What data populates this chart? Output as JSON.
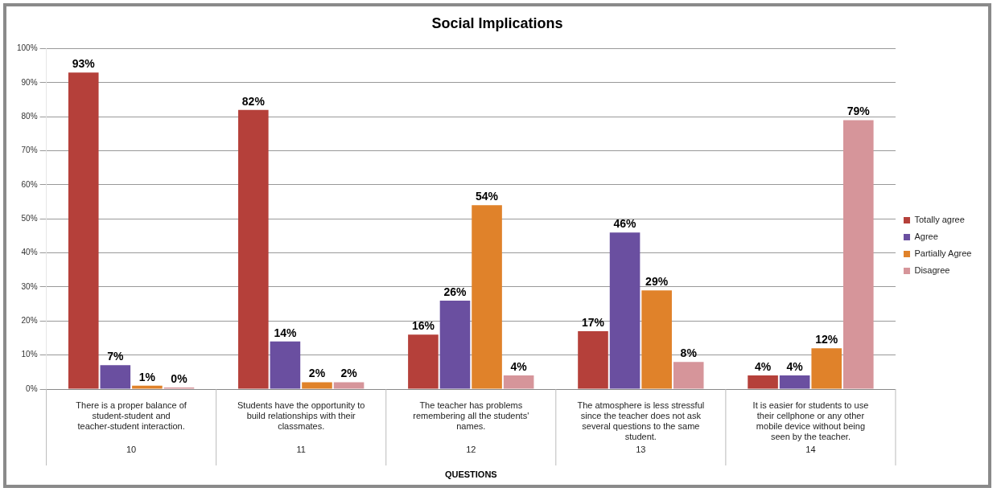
{
  "chart_data": {
    "type": "bar",
    "title": "Social Implications",
    "xlabel": "QUESTIONS",
    "categories": [
      "There is a proper balance of student-student and teacher-student interaction.",
      "Students have the opportunity to build relationships with their classmates.",
      "The teacher has problems remembering all the students' names.",
      "The atmosphere is less stressful since the teacher does not ask several questions to the same student.",
      "It is easier for students to use their cellphone or any other mobile device without being seen by the teacher."
    ],
    "series": [
      {
        "name": "Totally agree",
        "color": "#b5403a",
        "values": [
          93,
          82,
          16,
          17,
          4
        ],
        "value_labels": [
          "93%",
          "82%",
          "16%",
          "17%",
          "4%"
        ]
      },
      {
        "name": "Agree",
        "color": "#6a4fa0",
        "values": [
          7,
          14,
          26,
          46,
          4
        ],
        "value_labels": [
          "7%",
          "14%",
          "26%",
          "46%",
          "4%"
        ]
      },
      {
        "name": "Partially Agree",
        "color": "#e0822a",
        "values": [
          1,
          2,
          54,
          29,
          12
        ],
        "value_labels": [
          "1%",
          "2%",
          "54%",
          "29%",
          "12%"
        ]
      },
      {
        "name": "Disagree",
        "color": "#d6959a",
        "values": [
          0,
          2,
          4,
          8,
          79
        ],
        "value_labels": [
          "0%",
          "2%",
          "4%",
          "8%",
          "79%"
        ]
      }
    ],
    "annotations": [
      "10",
      "11",
      "12",
      "13",
      "14"
    ],
    "ylim": [
      0,
      100
    ],
    "yticks": [
      {
        "value": 0,
        "label": "0%"
      },
      {
        "value": 10,
        "label": "10%"
      },
      {
        "value": 20,
        "label": "20%"
      },
      {
        "value": 30,
        "label": "30%"
      },
      {
        "value": 40,
        "label": "40%"
      },
      {
        "value": 50,
        "label": "50%"
      },
      {
        "value": 60,
        "label": "60%"
      },
      {
        "value": 70,
        "label": "70%"
      },
      {
        "value": 80,
        "label": "80%"
      },
      {
        "value": 90,
        "label": "90%"
      },
      {
        "value": 100,
        "label": "100%"
      }
    ],
    "grid": "y",
    "legend": "right"
  }
}
